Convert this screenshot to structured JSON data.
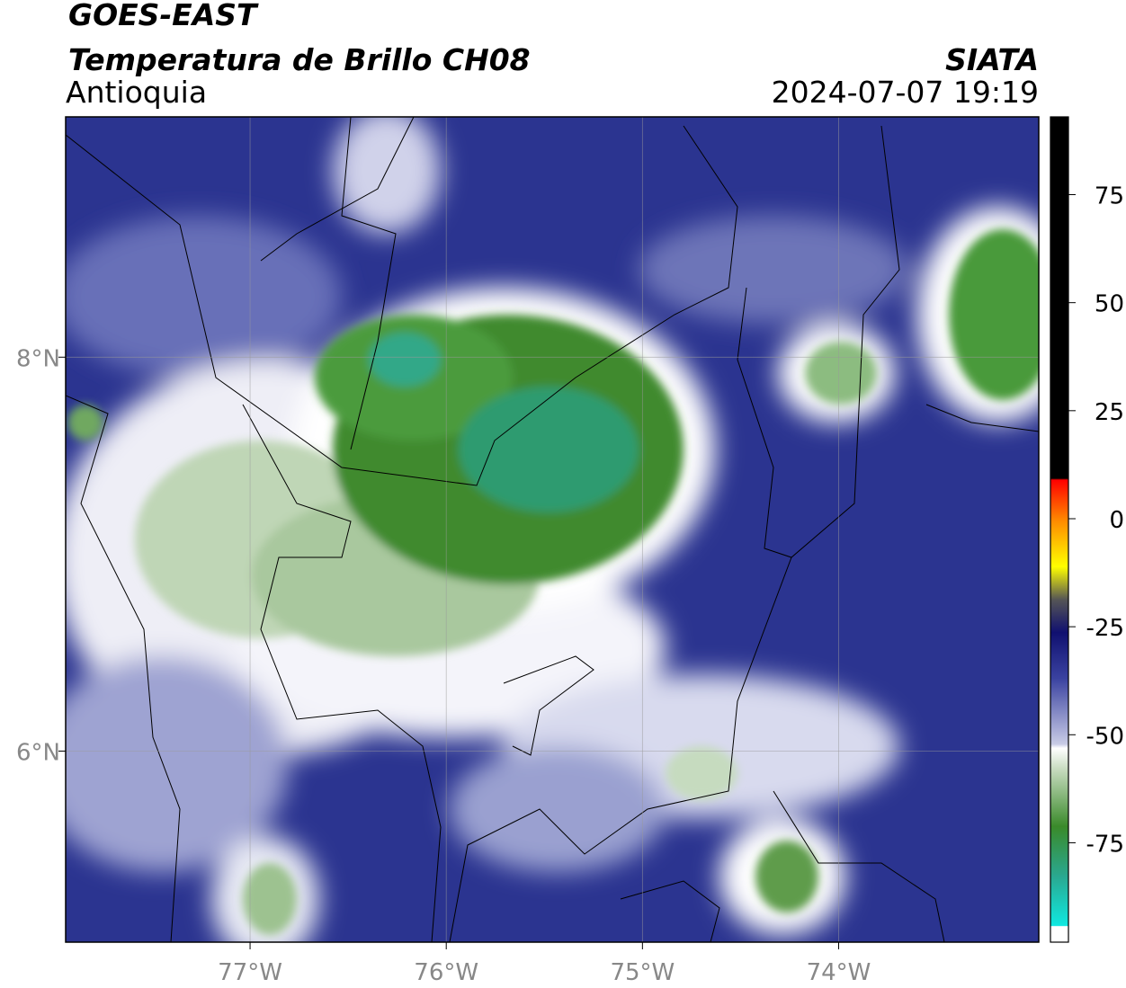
{
  "header": {
    "title": "GOES-EAST",
    "subtitle": "Temperatura de Brillo CH08",
    "region": "Antioquia",
    "source": "SIATA",
    "datetime": "2024-07-07 19:19"
  },
  "map": {
    "xlim": [
      -77.94,
      -72.98
    ],
    "ylim": [
      5.03,
      9.22
    ],
    "xticks": [
      {
        "value": -77,
        "label": "77°W"
      },
      {
        "value": -76,
        "label": "76°W"
      },
      {
        "value": -75,
        "label": "75°W"
      },
      {
        "value": -74,
        "label": "74°W"
      }
    ],
    "yticks": [
      {
        "value": 8,
        "label": "8°N"
      },
      {
        "value": 6,
        "label": "6°N"
      }
    ],
    "grid": true
  },
  "colorbar": {
    "lim": [
      -98,
      93
    ],
    "ticks": [
      75,
      50,
      25,
      0,
      -25,
      -50,
      -75
    ]
  }
}
